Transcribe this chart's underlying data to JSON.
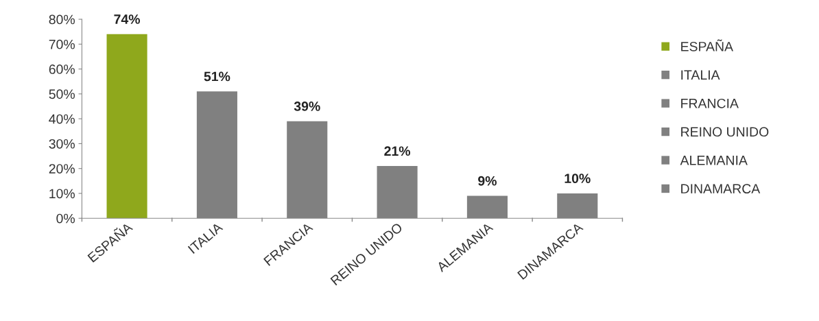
{
  "chart_data": {
    "type": "bar",
    "categories": [
      "ESPAÑA",
      "ITALIA",
      "FRANCIA",
      "REINO UNIDO",
      "ALEMANIA",
      "DINAMARCA"
    ],
    "series": [
      {
        "name": "ESPAÑA",
        "color": "#8fa81c",
        "values": [
          74,
          null,
          null,
          null,
          null,
          null
        ],
        "value_labels": [
          "74%",
          null,
          null,
          null,
          null,
          null
        ]
      },
      {
        "name": "ITALIA",
        "color": "#808080",
        "values": [
          null,
          51,
          null,
          null,
          null,
          null
        ],
        "value_labels": [
          null,
          "51%",
          null,
          null,
          null,
          null
        ]
      },
      {
        "name": "FRANCIA",
        "color": "#808080",
        "values": [
          null,
          null,
          39,
          null,
          null,
          null
        ],
        "value_labels": [
          null,
          null,
          "39%",
          null,
          null,
          null
        ]
      },
      {
        "name": "REINO UNIDO",
        "color": "#808080",
        "values": [
          null,
          null,
          null,
          21,
          null,
          null
        ],
        "value_labels": [
          null,
          null,
          null,
          "21%",
          null,
          null
        ]
      },
      {
        "name": "ALEMANIA",
        "color": "#808080",
        "values": [
          null,
          null,
          null,
          null,
          9,
          null
        ],
        "value_labels": [
          null,
          null,
          null,
          null,
          "9%",
          null
        ]
      },
      {
        "name": "DINAMARCA",
        "color": "#808080",
        "values": [
          null,
          null,
          null,
          null,
          null,
          10
        ],
        "value_labels": [
          null,
          null,
          null,
          null,
          null,
          "10%"
        ]
      }
    ],
    "ylim": [
      0,
      80
    ],
    "yticks": [
      {
        "value": 0,
        "label": "0%"
      },
      {
        "value": 10,
        "label": "10%"
      },
      {
        "value": 20,
        "label": "20%"
      },
      {
        "value": 30,
        "label": "30%"
      },
      {
        "value": 40,
        "label": "40%"
      },
      {
        "value": 50,
        "label": "50%"
      },
      {
        "value": 60,
        "label": "60%"
      },
      {
        "value": 70,
        "label": "70%"
      },
      {
        "value": 80,
        "label": "80%"
      }
    ],
    "legend": "right"
  }
}
